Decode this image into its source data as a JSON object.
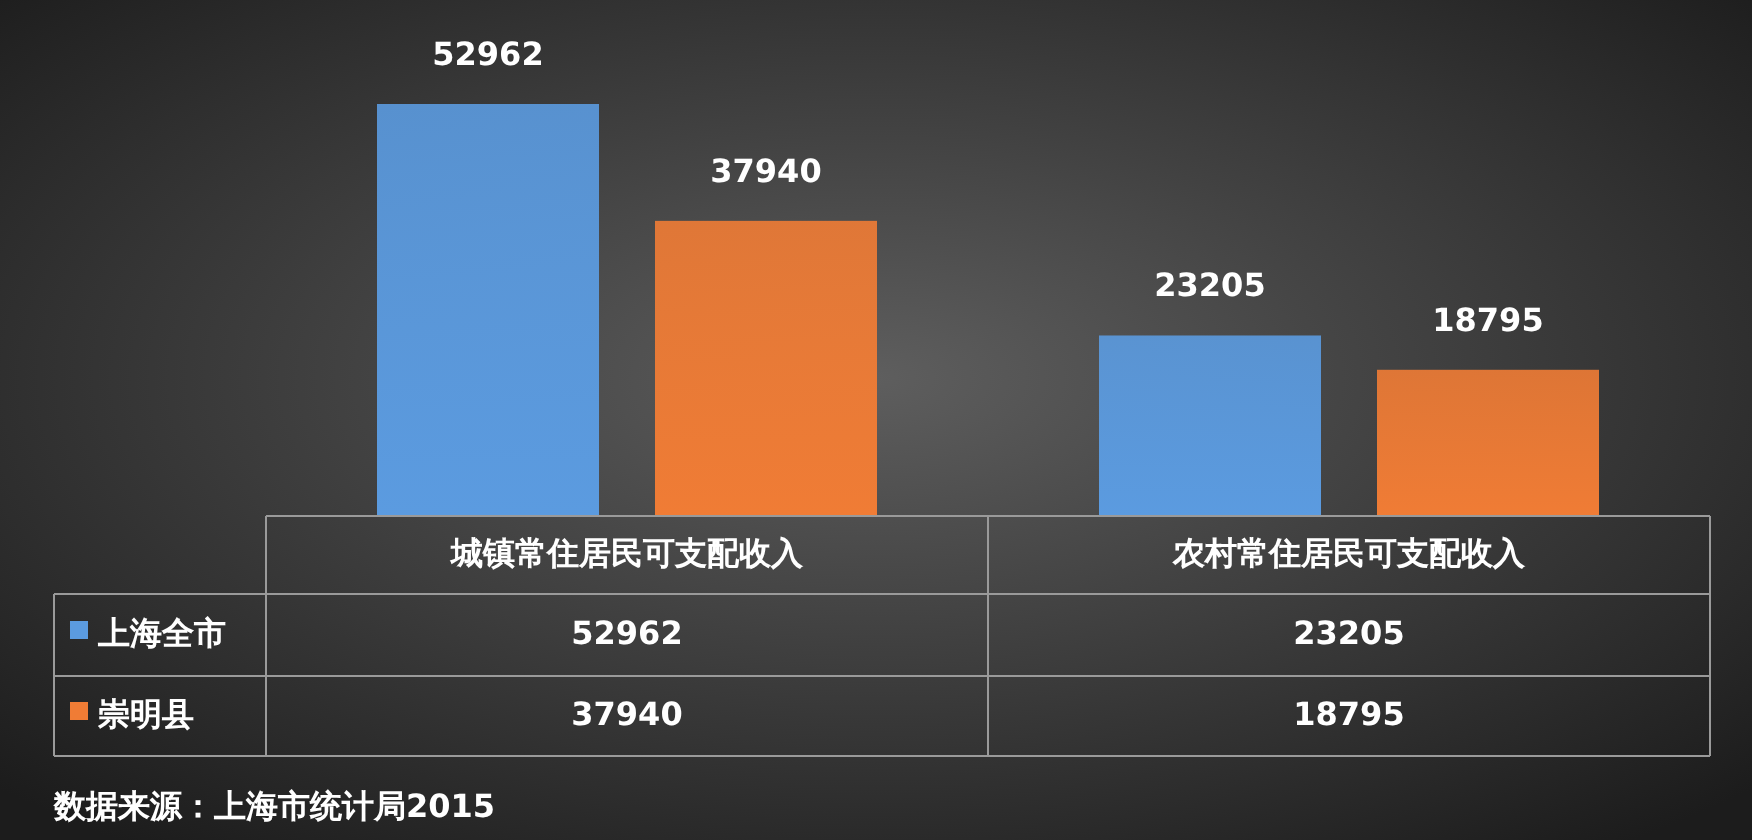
{
  "chart_data": [
    {
      "type": "bar",
      "categories": [
        "城镇常住居民可支配收入",
        "农村常住居民可支配收入"
      ],
      "series": [
        {
          "name": "上海全市",
          "color": "#5b9be0",
          "values": [
            52962,
            23205
          ],
          "value_labels": [
            "52962",
            "23205"
          ]
        },
        {
          "name": "崇明县",
          "color": "#f07c35",
          "values": [
            37940,
            18795
          ],
          "value_labels": [
            "37940",
            "18795"
          ]
        }
      ],
      "legend": "bottom left",
      "annotations": [
        "数据来源：上海市统计局2015"
      ]
    },
    {
      "type": "other",
      "annotations": [
        "52962",
        "23205",
        "37940",
        "18795"
      ]
    }
  ]
}
